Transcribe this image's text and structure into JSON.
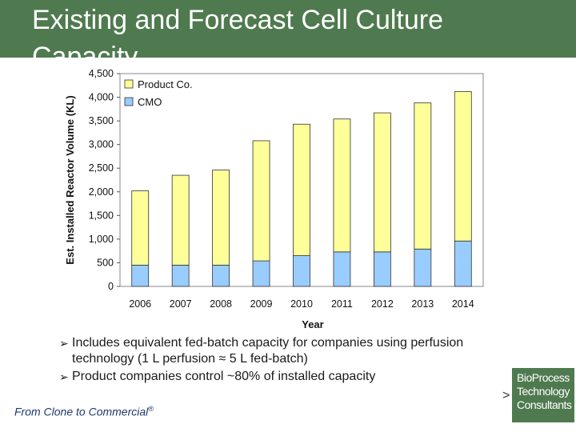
{
  "slide": {
    "title": "Existing and Forecast Cell Culture Capacity",
    "bullets": [
      "Includes equivalent fed-batch capacity for companies using perfusion technology (1 L perfusion ≈ 5 L fed-batch)",
      "Product companies control ~80% of installed capacity"
    ],
    "bullet_icon": "arrow-right-icon",
    "footer_text": "From Clone to Commercial",
    "footer_mark": "®",
    "logo_lines": [
      "BioProcess",
      "Technology",
      "Consultants"
    ],
    "logo_prefix": ">"
  },
  "colors": {
    "header_bg": "#4f7a4f",
    "product_co": "#ffff99",
    "cmo": "#99ccff",
    "bar_stroke": "#333333"
  },
  "chart_data": {
    "type": "bar",
    "stacked": true,
    "categories": [
      "2006",
      "2007",
      "2008",
      "2009",
      "2010",
      "2011",
      "2012",
      "2013",
      "2014"
    ],
    "series": [
      {
        "name": "CMO",
        "color": "#99ccff",
        "values": [
          450,
          450,
          450,
          540,
          650,
          730,
          730,
          790,
          960
        ]
      },
      {
        "name": "Product Co.",
        "color": "#ffff99",
        "values": [
          1570,
          1900,
          2010,
          2540,
          2780,
          2810,
          2940,
          3090,
          3160
        ]
      }
    ],
    "xlabel": "Year",
    "ylabel": "Est. Installed Reactor Volume (KL)",
    "ylim": [
      0,
      4500
    ],
    "yticks": [
      "0",
      "500",
      "1,000",
      "1,500",
      "2,000",
      "2,500",
      "3,000",
      "3,500",
      "4,000",
      "4,500"
    ],
    "ytick_values": [
      0,
      500,
      1000,
      1500,
      2000,
      2500,
      3000,
      3500,
      4000,
      4500
    ],
    "legend_position": "top-left",
    "grid": false
  }
}
